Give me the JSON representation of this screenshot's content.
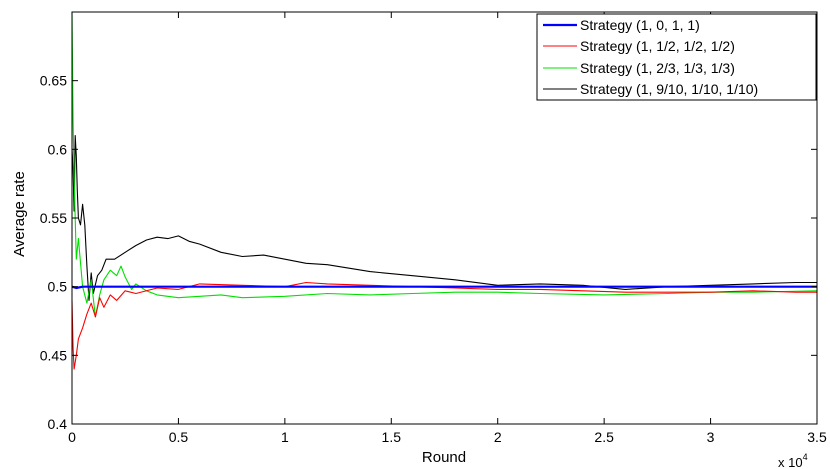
{
  "chart_data": {
    "type": "line",
    "xlabel": "Round",
    "ylabel": "Average rate",
    "x_multiplier_label": "x 10",
    "x_multiplier_exp": "4",
    "xlim": [
      0,
      3.5
    ],
    "ylim": [
      0.4,
      0.7
    ],
    "xticks": [
      "0",
      "0.5",
      "1",
      "1.5",
      "2",
      "2.5",
      "3",
      "3.5"
    ],
    "yticks": [
      "0.4",
      "0.45",
      "0.5",
      "0.55",
      "0.6",
      "0.65"
    ],
    "grid": false,
    "legend_position": "top-right",
    "series": [
      {
        "name": "Strategy (1, 0, 1, 1)",
        "color": "#0000ff",
        "width": 2.2,
        "x": [
          0.0,
          0.02,
          0.05,
          0.1,
          0.2,
          0.3,
          0.5,
          1.0,
          1.5,
          2.0,
          2.5,
          3.0,
          3.5
        ],
        "y": [
          0.5,
          0.499,
          0.5,
          0.5,
          0.5,
          0.5,
          0.5,
          0.5,
          0.5,
          0.5,
          0.5,
          0.5,
          0.5
        ]
      },
      {
        "name": "Strategy (1, 1/2, 1/2, 1/2)",
        "color": "#ff0000",
        "width": 1.1,
        "x": [
          0.0,
          0.005,
          0.01,
          0.02,
          0.03,
          0.05,
          0.07,
          0.09,
          0.11,
          0.13,
          0.15,
          0.18,
          0.21,
          0.25,
          0.3,
          0.4,
          0.5,
          0.6,
          0.8,
          1.0,
          1.1,
          1.2,
          1.4,
          1.6,
          1.8,
          2.0,
          2.2,
          2.4,
          2.6,
          2.8,
          3.0,
          3.2,
          3.4,
          3.5
        ],
        "y": [
          0.49,
          0.455,
          0.44,
          0.45,
          0.462,
          0.47,
          0.48,
          0.488,
          0.478,
          0.492,
          0.485,
          0.494,
          0.49,
          0.497,
          0.495,
          0.499,
          0.498,
          0.502,
          0.501,
          0.5,
          0.503,
          0.502,
          0.501,
          0.5,
          0.499,
          0.498,
          0.498,
          0.497,
          0.496,
          0.496,
          0.496,
          0.497,
          0.496,
          0.496
        ]
      },
      {
        "name": "Strategy (1, 2/3, 1/3, 1/3)",
        "color": "#00e000",
        "width": 1.1,
        "x": [
          0.0,
          0.005,
          0.01,
          0.02,
          0.03,
          0.05,
          0.07,
          0.09,
          0.11,
          0.13,
          0.15,
          0.18,
          0.21,
          0.23,
          0.25,
          0.28,
          0.3,
          0.35,
          0.4,
          0.5,
          0.6,
          0.7,
          0.8,
          1.0,
          1.2,
          1.4,
          1.6,
          1.8,
          2.0,
          2.2,
          2.5,
          2.8,
          3.0,
          3.2,
          3.5
        ],
        "y": [
          0.7,
          0.62,
          0.58,
          0.52,
          0.535,
          0.5,
          0.488,
          0.505,
          0.478,
          0.494,
          0.505,
          0.512,
          0.508,
          0.515,
          0.507,
          0.498,
          0.502,
          0.497,
          0.494,
          0.492,
          0.493,
          0.494,
          0.492,
          0.493,
          0.495,
          0.494,
          0.495,
          0.496,
          0.496,
          0.495,
          0.494,
          0.495,
          0.496,
          0.496,
          0.497
        ]
      },
      {
        "name": "Strategy (1, 9/10, 1/10, 1/10)",
        "color": "#000000",
        "width": 1.1,
        "x": [
          0.0,
          0.005,
          0.01,
          0.015,
          0.02,
          0.025,
          0.03,
          0.04,
          0.05,
          0.06,
          0.07,
          0.08,
          0.09,
          0.1,
          0.12,
          0.14,
          0.16,
          0.2,
          0.25,
          0.3,
          0.35,
          0.4,
          0.45,
          0.5,
          0.55,
          0.6,
          0.7,
          0.8,
          0.9,
          1.0,
          1.1,
          1.2,
          1.4,
          1.6,
          1.8,
          2.0,
          2.2,
          2.4,
          2.6,
          2.8,
          3.0,
          3.2,
          3.4,
          3.5
        ],
        "y": [
          0.6,
          0.585,
          0.555,
          0.61,
          0.595,
          0.57,
          0.55,
          0.545,
          0.56,
          0.545,
          0.515,
          0.49,
          0.51,
          0.495,
          0.508,
          0.512,
          0.52,
          0.52,
          0.525,
          0.53,
          0.534,
          0.536,
          0.535,
          0.537,
          0.533,
          0.531,
          0.525,
          0.522,
          0.523,
          0.52,
          0.517,
          0.516,
          0.511,
          0.508,
          0.505,
          0.501,
          0.502,
          0.501,
          0.498,
          0.5,
          0.501,
          0.502,
          0.503,
          0.503
        ]
      }
    ]
  }
}
